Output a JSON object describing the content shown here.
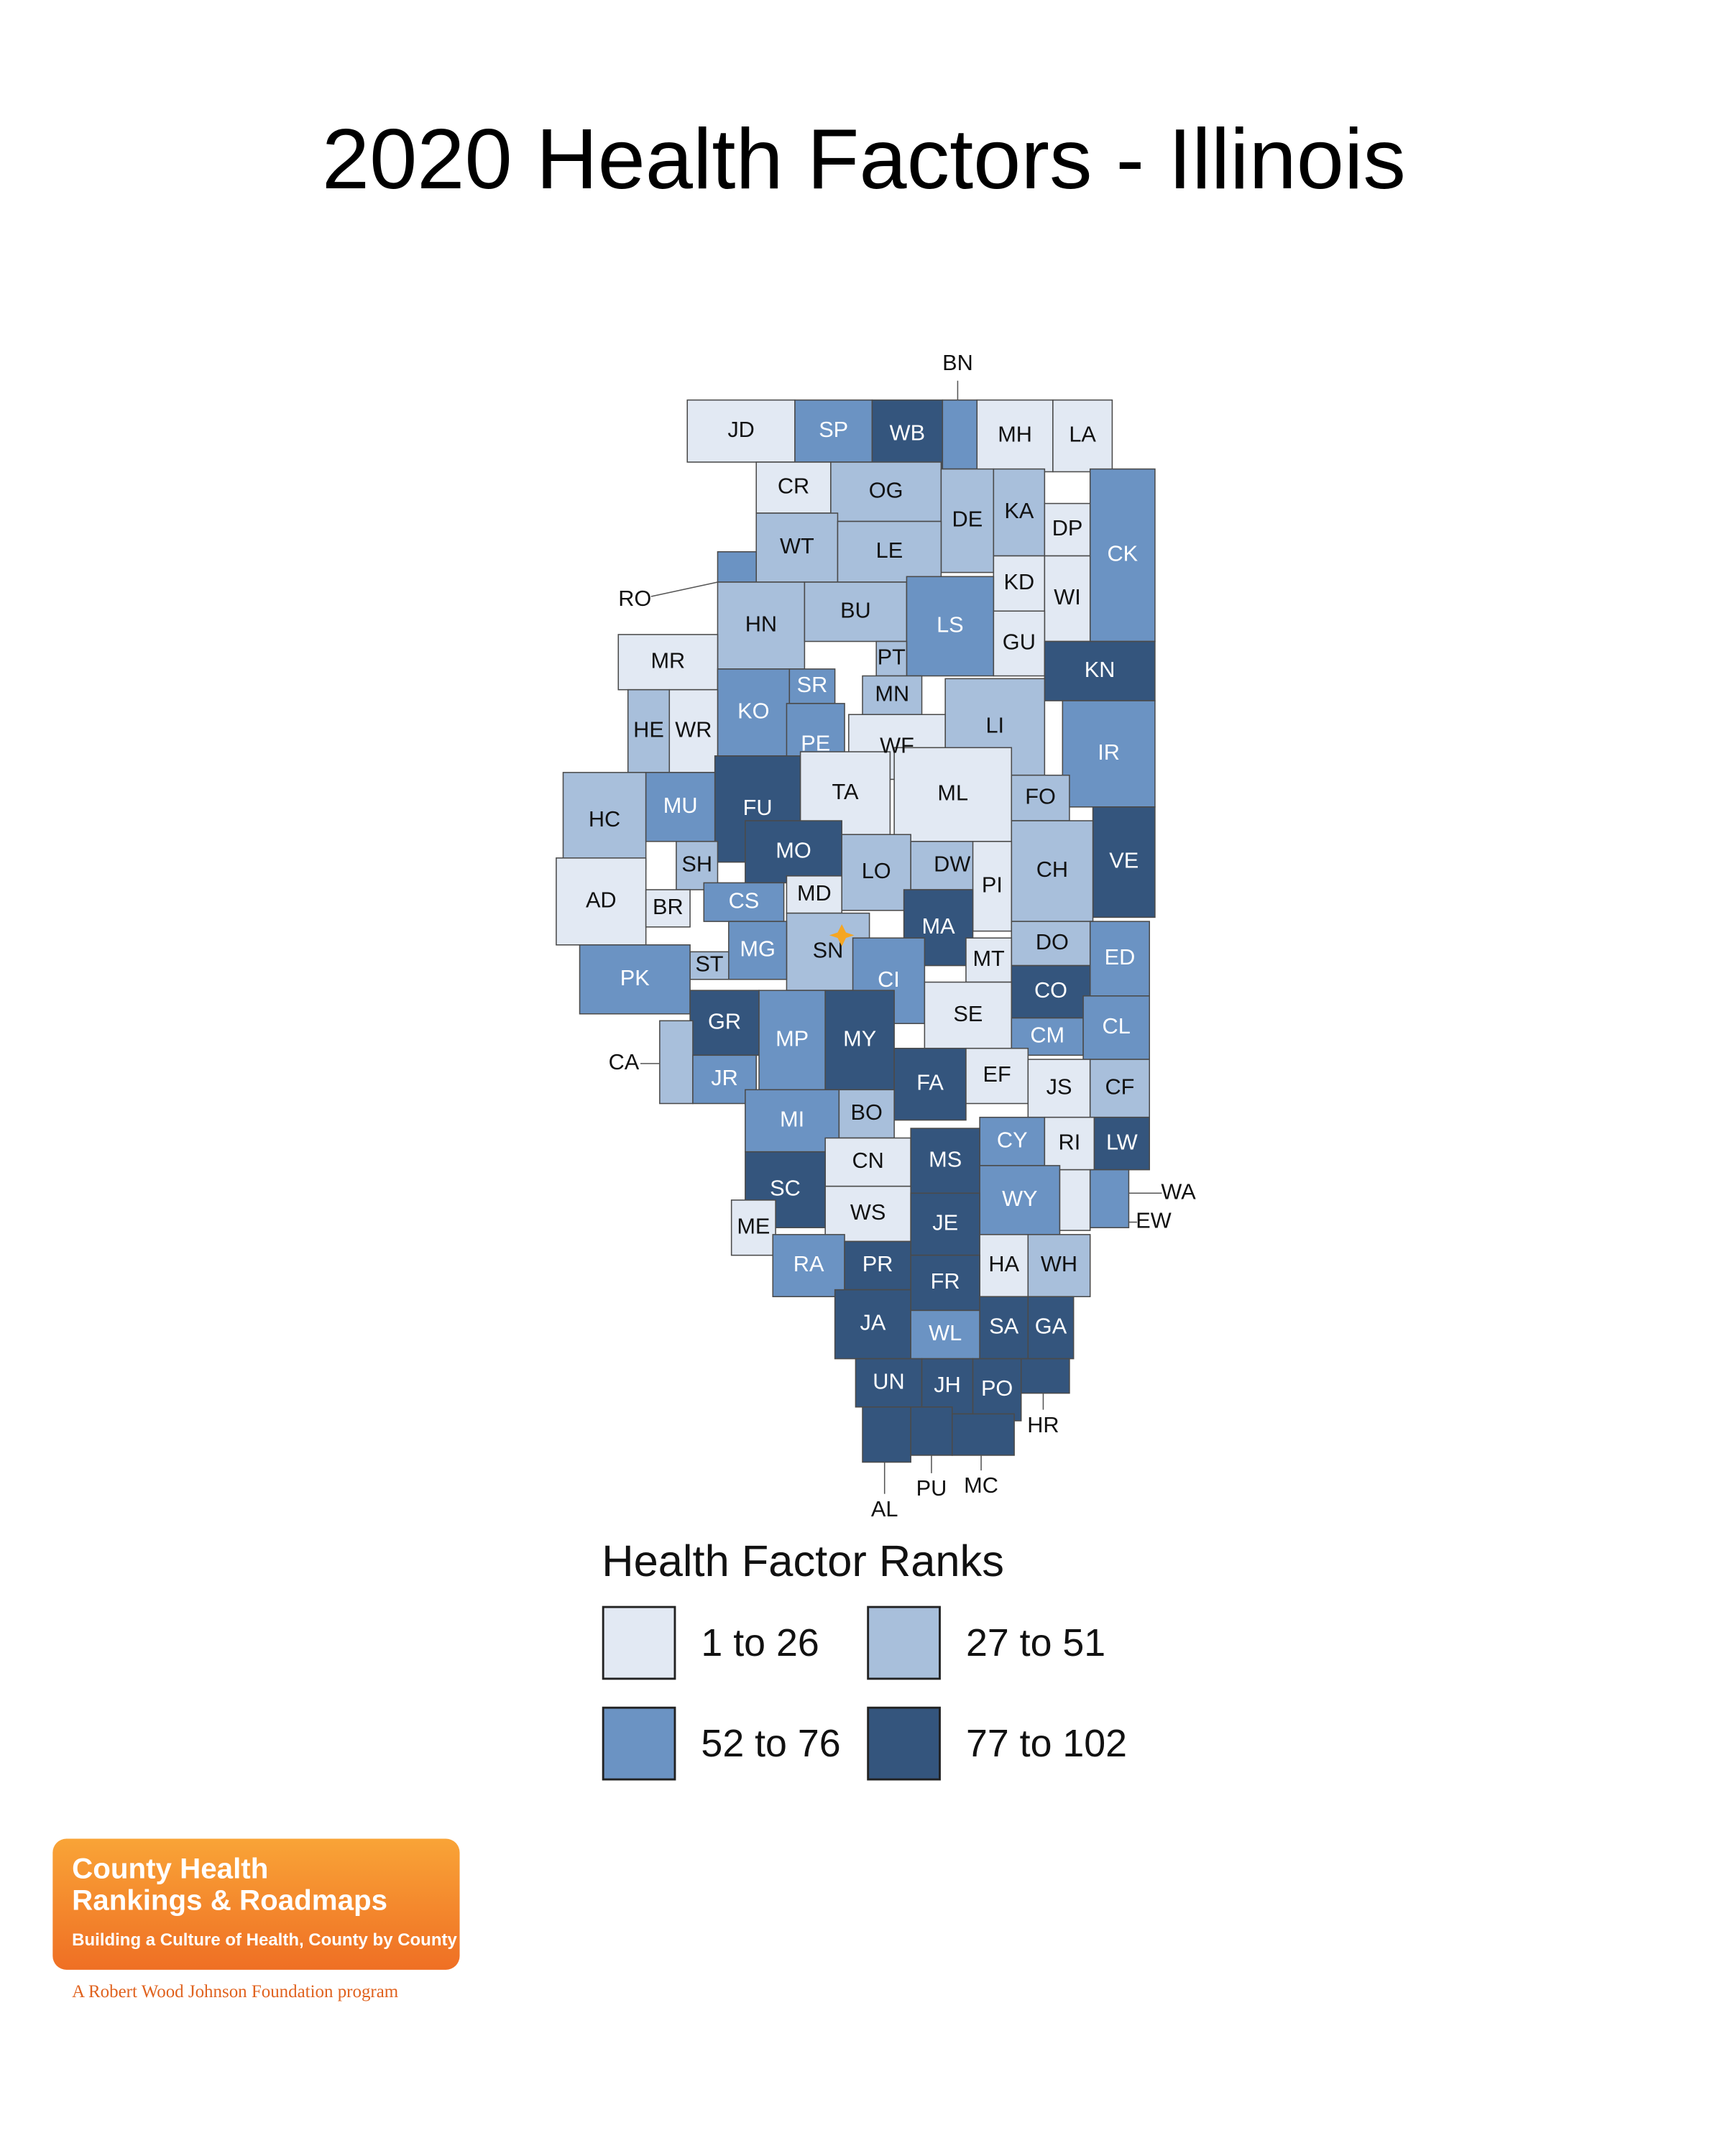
{
  "title": "2020 Health Factors - Illinois",
  "legend": {
    "title": "Health Factor Ranks",
    "items": [
      {
        "label": "1 to 26",
        "color": "#e2e9f3"
      },
      {
        "label": "27 to 51",
        "color": "#a8bfdb"
      },
      {
        "label": "52 to 76",
        "color": "#6b93c3"
      },
      {
        "label": "77 to 102",
        "color": "#34557d"
      }
    ]
  },
  "counties": [
    {
      "label": "JD",
      "bin": 0
    },
    {
      "label": "SP",
      "bin": 2
    },
    {
      "label": "WB",
      "bin": 3
    },
    {
      "label": "BN",
      "bin": 2
    },
    {
      "label": "MH",
      "bin": 0
    },
    {
      "label": "LA",
      "bin": 0
    },
    {
      "label": "CR",
      "bin": 0
    },
    {
      "label": "OG",
      "bin": 1
    },
    {
      "label": "DE",
      "bin": 1
    },
    {
      "label": "KA",
      "bin": 1
    },
    {
      "label": "DP",
      "bin": 0
    },
    {
      "label": "CK",
      "bin": 2
    },
    {
      "label": "WT",
      "bin": 1
    },
    {
      "label": "LE",
      "bin": 1
    },
    {
      "label": "KD",
      "bin": 0
    },
    {
      "label": "WI",
      "bin": 0
    },
    {
      "label": "RO",
      "bin": 2
    },
    {
      "label": "HN",
      "bin": 1
    },
    {
      "label": "BU",
      "bin": 1
    },
    {
      "label": "LS",
      "bin": 2
    },
    {
      "label": "GU",
      "bin": 0
    },
    {
      "label": "KN",
      "bin": 3
    },
    {
      "label": "MR",
      "bin": 0
    },
    {
      "label": "PT",
      "bin": 1
    },
    {
      "label": "SR",
      "bin": 2
    },
    {
      "label": "MN",
      "bin": 1
    },
    {
      "label": "KO",
      "bin": 2
    },
    {
      "label": "HE",
      "bin": 1
    },
    {
      "label": "WR",
      "bin": 0
    },
    {
      "label": "PE",
      "bin": 2
    },
    {
      "label": "LI",
      "bin": 1
    },
    {
      "label": "WF",
      "bin": 0
    },
    {
      "label": "IR",
      "bin": 2
    },
    {
      "label": "FU",
      "bin": 3
    },
    {
      "label": "TA",
      "bin": 0
    },
    {
      "label": "ML",
      "bin": 0
    },
    {
      "label": "FO",
      "bin": 1
    },
    {
      "label": "HC",
      "bin": 1
    },
    {
      "label": "MU",
      "bin": 2
    },
    {
      "label": "VE",
      "bin": 3
    },
    {
      "label": "MO",
      "bin": 3
    },
    {
      "label": "SH",
      "bin": 1
    },
    {
      "label": "LO",
      "bin": 1
    },
    {
      "label": "DW",
      "bin": 1
    },
    {
      "label": "CH",
      "bin": 1
    },
    {
      "label": "AD",
      "bin": 0
    },
    {
      "label": "BR",
      "bin": 0
    },
    {
      "label": "MD",
      "bin": 0
    },
    {
      "label": "CS",
      "bin": 2
    },
    {
      "label": "PI",
      "bin": 0
    },
    {
      "label": "MA",
      "bin": 3
    },
    {
      "label": "SN",
      "bin": 1
    },
    {
      "label": "MG",
      "bin": 2
    },
    {
      "label": "ST",
      "bin": 1
    },
    {
      "label": "DO",
      "bin": 1
    },
    {
      "label": "ED",
      "bin": 2
    },
    {
      "label": "PK",
      "bin": 2
    },
    {
      "label": "CI",
      "bin": 2
    },
    {
      "label": "MT",
      "bin": 0
    },
    {
      "label": "CO",
      "bin": 3
    },
    {
      "label": "SE",
      "bin": 0
    },
    {
      "label": "GR",
      "bin": 3
    },
    {
      "label": "MP",
      "bin": 2
    },
    {
      "label": "MY",
      "bin": 3
    },
    {
      "label": "CM",
      "bin": 2
    },
    {
      "label": "CL",
      "bin": 2
    },
    {
      "label": "CA",
      "bin": 1
    },
    {
      "label": "JR",
      "bin": 2
    },
    {
      "label": "FA",
      "bin": 3
    },
    {
      "label": "EF",
      "bin": 0
    },
    {
      "label": "JS",
      "bin": 0
    },
    {
      "label": "CF",
      "bin": 1
    },
    {
      "label": "MI",
      "bin": 2
    },
    {
      "label": "BO",
      "bin": 1
    },
    {
      "label": "CY",
      "bin": 2
    },
    {
      "label": "RI",
      "bin": 0
    },
    {
      "label": "LW",
      "bin": 3
    },
    {
      "label": "CN",
      "bin": 0
    },
    {
      "label": "MS",
      "bin": 3
    },
    {
      "label": "SC",
      "bin": 3
    },
    {
      "label": "WY",
      "bin": 2
    },
    {
      "label": "EW",
      "bin": 0
    },
    {
      "label": "WA",
      "bin": 2
    },
    {
      "label": "WS",
      "bin": 0
    },
    {
      "label": "JE",
      "bin": 3
    },
    {
      "label": "ME",
      "bin": 0
    },
    {
      "label": "RA",
      "bin": 2
    },
    {
      "label": "PR",
      "bin": 3
    },
    {
      "label": "HA",
      "bin": 0
    },
    {
      "label": "WH",
      "bin": 1
    },
    {
      "label": "FR",
      "bin": 3
    },
    {
      "label": "JA",
      "bin": 3
    },
    {
      "label": "WL",
      "bin": 2
    },
    {
      "label": "SA",
      "bin": 3
    },
    {
      "label": "GA",
      "bin": 3
    },
    {
      "label": "UN",
      "bin": 3
    },
    {
      "label": "JH",
      "bin": 3
    },
    {
      "label": "PO",
      "bin": 3
    },
    {
      "label": "HR",
      "bin": 3
    },
    {
      "label": "AL",
      "bin": 3
    },
    {
      "label": "PU",
      "bin": 3
    },
    {
      "label": "MC",
      "bin": 3
    }
  ],
  "logo": {
    "line1": "County Health",
    "line2": "Rankings & Roadmaps",
    "tagline": "Building a Culture of Health, County by County",
    "program": "A Robert Wood Johnson Foundation program"
  }
}
